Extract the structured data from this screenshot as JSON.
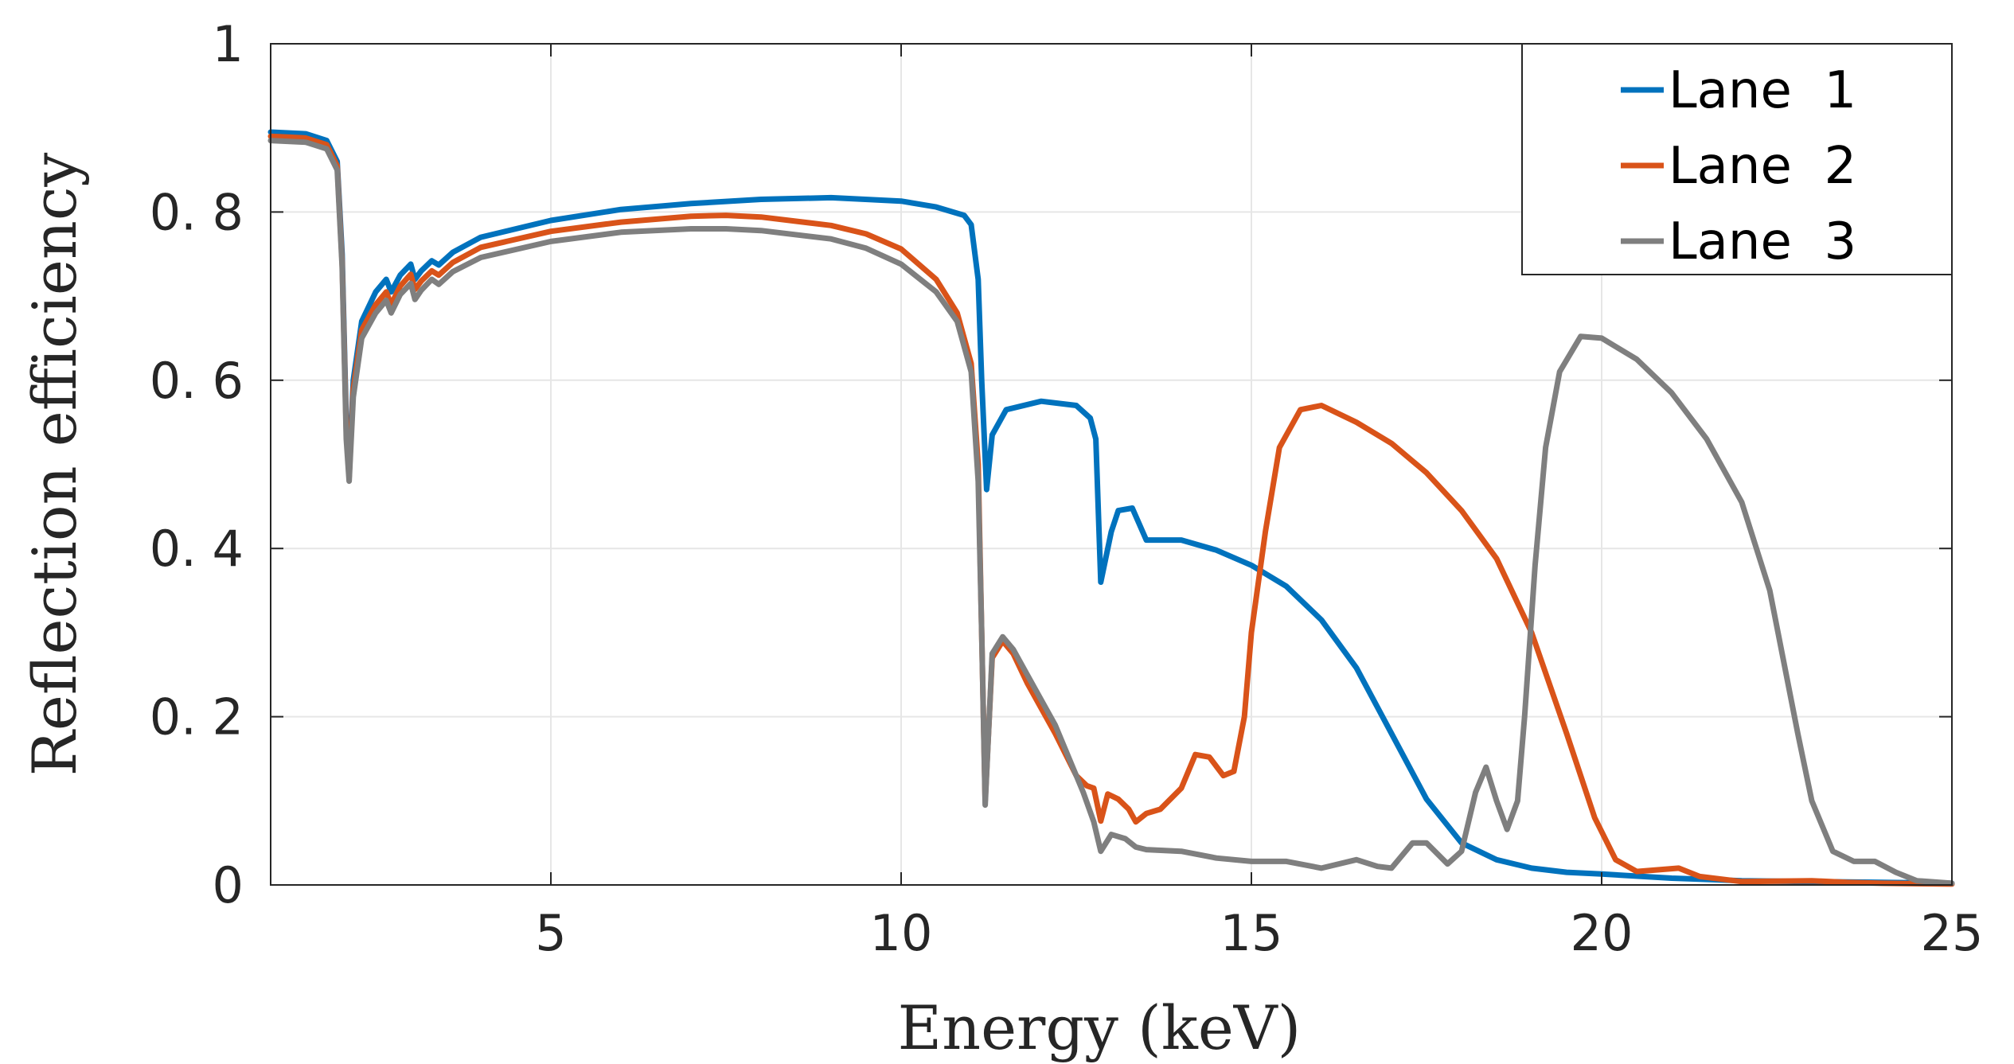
{
  "chart_data": {
    "type": "line",
    "title": "",
    "xlabel": "Energy (keV)",
    "ylabel": "Reflection efficiency",
    "xlim": [
      1,
      25
    ],
    "ylim": [
      0,
      1
    ],
    "xticks": [
      5,
      10,
      15,
      20,
      25
    ],
    "xtick_labels": [
      "5",
      "10",
      "15",
      "20",
      "25"
    ],
    "yticks": [
      0,
      0.2,
      0.4,
      0.6,
      0.8,
      1
    ],
    "ytick_labels": [
      "0",
      "0. 2",
      "0. 4",
      "0. 6",
      "0. 8",
      "1"
    ],
    "grid": true,
    "legend_position": "top-right",
    "series": [
      {
        "name": "Lane  1",
        "color": "#0072BD",
        "points": [
          [
            1.0,
            0.895
          ],
          [
            1.5,
            0.893
          ],
          [
            1.8,
            0.885
          ],
          [
            1.95,
            0.86
          ],
          [
            2.02,
            0.75
          ],
          [
            2.08,
            0.55
          ],
          [
            2.12,
            0.49
          ],
          [
            2.18,
            0.6
          ],
          [
            2.3,
            0.67
          ],
          [
            2.5,
            0.705
          ],
          [
            2.65,
            0.72
          ],
          [
            2.72,
            0.705
          ],
          [
            2.85,
            0.725
          ],
          [
            3.0,
            0.738
          ],
          [
            3.06,
            0.72
          ],
          [
            3.15,
            0.73
          ],
          [
            3.3,
            0.742
          ],
          [
            3.4,
            0.737
          ],
          [
            3.6,
            0.752
          ],
          [
            4.0,
            0.77
          ],
          [
            5.0,
            0.79
          ],
          [
            6.0,
            0.803
          ],
          [
            7.0,
            0.81
          ],
          [
            8.0,
            0.815
          ],
          [
            9.0,
            0.817
          ],
          [
            10.0,
            0.813
          ],
          [
            10.5,
            0.806
          ],
          [
            10.9,
            0.796
          ],
          [
            11.0,
            0.785
          ],
          [
            11.1,
            0.72
          ],
          [
            11.15,
            0.6
          ],
          [
            11.22,
            0.47
          ],
          [
            11.3,
            0.535
          ],
          [
            11.5,
            0.565
          ],
          [
            12.0,
            0.575
          ],
          [
            12.5,
            0.57
          ],
          [
            12.7,
            0.555
          ],
          [
            12.78,
            0.53
          ],
          [
            12.85,
            0.36
          ],
          [
            13.0,
            0.42
          ],
          [
            13.1,
            0.445
          ],
          [
            13.3,
            0.448
          ],
          [
            13.5,
            0.41
          ],
          [
            14.0,
            0.41
          ],
          [
            14.5,
            0.398
          ],
          [
            15.0,
            0.38
          ],
          [
            15.5,
            0.355
          ],
          [
            16.0,
            0.315
          ],
          [
            16.5,
            0.258
          ],
          [
            17.0,
            0.18
          ],
          [
            17.5,
            0.102
          ],
          [
            18.0,
            0.05
          ],
          [
            18.5,
            0.03
          ],
          [
            19.0,
            0.02
          ],
          [
            19.5,
            0.015
          ],
          [
            20.0,
            0.013
          ],
          [
            21.0,
            0.008
          ],
          [
            22.0,
            0.005
          ],
          [
            23.0,
            0.004
          ],
          [
            24.0,
            0.003
          ],
          [
            25.0,
            0.002
          ]
        ]
      },
      {
        "name": "Lane  2",
        "color": "#D95319",
        "points": [
          [
            1.0,
            0.89
          ],
          [
            1.5,
            0.888
          ],
          [
            1.8,
            0.88
          ],
          [
            1.95,
            0.855
          ],
          [
            2.02,
            0.74
          ],
          [
            2.08,
            0.54
          ],
          [
            2.12,
            0.485
          ],
          [
            2.18,
            0.59
          ],
          [
            2.3,
            0.66
          ],
          [
            2.5,
            0.69
          ],
          [
            2.65,
            0.705
          ],
          [
            2.72,
            0.69
          ],
          [
            2.85,
            0.712
          ],
          [
            3.0,
            0.726
          ],
          [
            3.06,
            0.708
          ],
          [
            3.15,
            0.718
          ],
          [
            3.3,
            0.73
          ],
          [
            3.4,
            0.725
          ],
          [
            3.6,
            0.74
          ],
          [
            4.0,
            0.758
          ],
          [
            5.0,
            0.777
          ],
          [
            6.0,
            0.788
          ],
          [
            7.0,
            0.795
          ],
          [
            7.5,
            0.796
          ],
          [
            8.0,
            0.794
          ],
          [
            9.0,
            0.784
          ],
          [
            9.5,
            0.774
          ],
          [
            10.0,
            0.756
          ],
          [
            10.5,
            0.72
          ],
          [
            10.8,
            0.68
          ],
          [
            11.0,
            0.62
          ],
          [
            11.1,
            0.5
          ],
          [
            11.15,
            0.3
          ],
          [
            11.2,
            0.1
          ],
          [
            11.3,
            0.27
          ],
          [
            11.45,
            0.29
          ],
          [
            11.6,
            0.275
          ],
          [
            11.8,
            0.24
          ],
          [
            12.2,
            0.18
          ],
          [
            12.5,
            0.13
          ],
          [
            12.65,
            0.118
          ],
          [
            12.75,
            0.115
          ],
          [
            12.85,
            0.076
          ],
          [
            12.95,
            0.108
          ],
          [
            13.1,
            0.102
          ],
          [
            13.25,
            0.09
          ],
          [
            13.35,
            0.075
          ],
          [
            13.5,
            0.085
          ],
          [
            13.7,
            0.09
          ],
          [
            14.0,
            0.115
          ],
          [
            14.2,
            0.155
          ],
          [
            14.4,
            0.152
          ],
          [
            14.6,
            0.13
          ],
          [
            14.75,
            0.135
          ],
          [
            14.9,
            0.2
          ],
          [
            15.0,
            0.3
          ],
          [
            15.2,
            0.42
          ],
          [
            15.4,
            0.52
          ],
          [
            15.7,
            0.565
          ],
          [
            16.0,
            0.57
          ],
          [
            16.5,
            0.55
          ],
          [
            17.0,
            0.525
          ],
          [
            17.5,
            0.49
          ],
          [
            18.0,
            0.445
          ],
          [
            18.5,
            0.388
          ],
          [
            19.0,
            0.3
          ],
          [
            19.5,
            0.18
          ],
          [
            19.9,
            0.08
          ],
          [
            20.2,
            0.03
          ],
          [
            20.5,
            0.016
          ],
          [
            20.8,
            0.018
          ],
          [
            21.1,
            0.02
          ],
          [
            21.4,
            0.01
          ],
          [
            22.0,
            0.004
          ],
          [
            23.0,
            0.005
          ],
          [
            23.5,
            0.003
          ],
          [
            24.0,
            0.002
          ],
          [
            25.0,
            0.001
          ]
        ]
      },
      {
        "name": "Lane  3",
        "color": "#7F7F7F",
        "points": [
          [
            1.0,
            0.885
          ],
          [
            1.5,
            0.883
          ],
          [
            1.8,
            0.875
          ],
          [
            1.95,
            0.85
          ],
          [
            2.02,
            0.735
          ],
          [
            2.08,
            0.53
          ],
          [
            2.12,
            0.48
          ],
          [
            2.18,
            0.58
          ],
          [
            2.3,
            0.65
          ],
          [
            2.5,
            0.68
          ],
          [
            2.65,
            0.695
          ],
          [
            2.72,
            0.68
          ],
          [
            2.85,
            0.702
          ],
          [
            3.0,
            0.715
          ],
          [
            3.06,
            0.696
          ],
          [
            3.15,
            0.707
          ],
          [
            3.3,
            0.72
          ],
          [
            3.4,
            0.714
          ],
          [
            3.6,
            0.729
          ],
          [
            4.0,
            0.746
          ],
          [
            5.0,
            0.765
          ],
          [
            6.0,
            0.776
          ],
          [
            7.0,
            0.78
          ],
          [
            7.5,
            0.78
          ],
          [
            8.0,
            0.778
          ],
          [
            9.0,
            0.768
          ],
          [
            9.5,
            0.757
          ],
          [
            10.0,
            0.738
          ],
          [
            10.5,
            0.705
          ],
          [
            10.8,
            0.67
          ],
          [
            11.0,
            0.61
          ],
          [
            11.1,
            0.48
          ],
          [
            11.15,
            0.3
          ],
          [
            11.2,
            0.095
          ],
          [
            11.3,
            0.275
          ],
          [
            11.45,
            0.295
          ],
          [
            11.6,
            0.28
          ],
          [
            11.8,
            0.25
          ],
          [
            12.2,
            0.19
          ],
          [
            12.6,
            0.11
          ],
          [
            12.75,
            0.075
          ],
          [
            12.85,
            0.04
          ],
          [
            13.0,
            0.06
          ],
          [
            13.2,
            0.055
          ],
          [
            13.35,
            0.045
          ],
          [
            13.5,
            0.042
          ],
          [
            14.0,
            0.04
          ],
          [
            14.5,
            0.032
          ],
          [
            15.0,
            0.028
          ],
          [
            15.5,
            0.028
          ],
          [
            16.0,
            0.02
          ],
          [
            16.5,
            0.03
          ],
          [
            16.8,
            0.022
          ],
          [
            17.0,
            0.02
          ],
          [
            17.3,
            0.05
          ],
          [
            17.5,
            0.05
          ],
          [
            17.8,
            0.025
          ],
          [
            18.0,
            0.04
          ],
          [
            18.2,
            0.11
          ],
          [
            18.35,
            0.14
          ],
          [
            18.5,
            0.1
          ],
          [
            18.65,
            0.066
          ],
          [
            18.8,
            0.1
          ],
          [
            18.9,
            0.2
          ],
          [
            19.05,
            0.38
          ],
          [
            19.2,
            0.52
          ],
          [
            19.4,
            0.61
          ],
          [
            19.7,
            0.652
          ],
          [
            20.0,
            0.65
          ],
          [
            20.5,
            0.625
          ],
          [
            21.0,
            0.585
          ],
          [
            21.5,
            0.53
          ],
          [
            22.0,
            0.455
          ],
          [
            22.4,
            0.35
          ],
          [
            22.8,
            0.18
          ],
          [
            23.0,
            0.1
          ],
          [
            23.3,
            0.04
          ],
          [
            23.6,
            0.028
          ],
          [
            23.9,
            0.028
          ],
          [
            24.2,
            0.015
          ],
          [
            24.5,
            0.005
          ],
          [
            25.0,
            0.002
          ]
        ]
      }
    ]
  }
}
